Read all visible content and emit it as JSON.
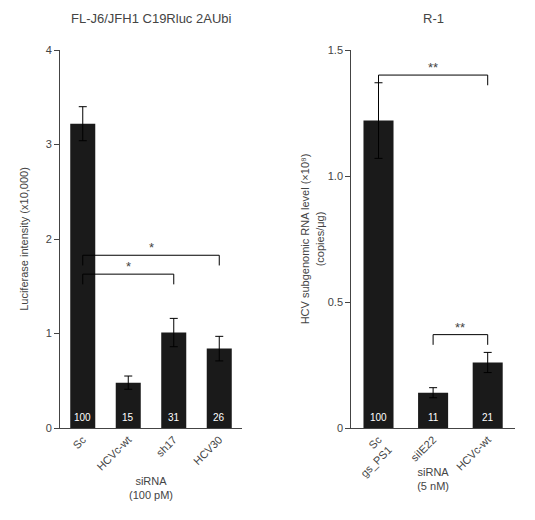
{
  "chart_data": [
    {
      "type": "bar",
      "title": "FL-J6/JFH1 C19Rluc 2AUbi",
      "categories": [
        "Sc",
        "HCVc-wt",
        "sh17",
        "HCV30"
      ],
      "values": [
        3.22,
        0.48,
        1.01,
        0.84
      ],
      "errors": [
        0.18,
        0.07,
        0.15,
        0.13
      ],
      "color": "#1a1a1a",
      "ylabel": "Luciferase intensity (x10,000)",
      "xlabel": "siRNA\n(100 pM)",
      "ylim": [
        0,
        4
      ],
      "yticks": [
        0,
        1,
        2,
        3,
        4
      ],
      "grid": false,
      "annotations": [
        {
          "x": "Sc",
          "text": "100"
        },
        {
          "x": "HCVc-wt",
          "text": "15"
        },
        {
          "x": "sh17",
          "text": "31"
        },
        {
          "x": "HCV30",
          "text": "26"
        }
      ],
      "brackets": [
        {
          "x0": "Sc",
          "x1": "sh17",
          "y": 1.52,
          "text": "*"
        },
        {
          "x0": "Sc",
          "x1": "HCV30",
          "y": 1.72,
          "text": "*"
        }
      ]
    },
    {
      "type": "bar",
      "title": "R-1",
      "categories": [
        "Sc\ngs_PS1",
        "siIE22",
        "HCVc-wt"
      ],
      "values": [
        1.22,
        0.14,
        0.26
      ],
      "errors": [
        0.15,
        0.02,
        0.04
      ],
      "color": "#1a1a1a",
      "ylabel": "HCV subgenomic RNA level (×10⁸)\n(copies/μg)",
      "xlabel": "siRNA\n(5 nM)",
      "ylim": [
        0,
        1.5
      ],
      "yticks": [
        0,
        0.5,
        {
          "value": 1.0,
          "label": "1.0"
        },
        1.5
      ],
      "grid": false,
      "annotations": [
        {
          "x": "Sc\ngs_PS1",
          "text": "100"
        },
        {
          "x": "siIE22",
          "text": "11"
        },
        {
          "x": "HCVc-wt",
          "text": "21"
        }
      ],
      "brackets": [
        {
          "x0": "Sc\ngs_PS1",
          "x1": "HCVc-wt",
          "y": 1.36,
          "text": "**"
        },
        {
          "x0": "siIE22",
          "x1": "HCVc-wt",
          "y": 0.33,
          "text": "**"
        }
      ]
    }
  ]
}
